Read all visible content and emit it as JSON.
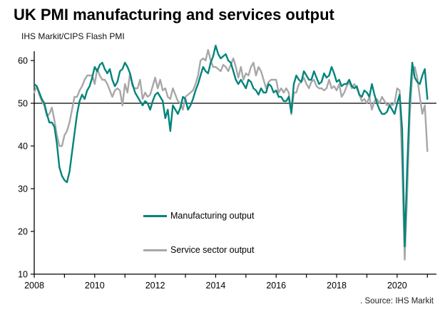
{
  "header": {
    "title": "UK PMI manufacturing and services output",
    "subtitle": "IHS Markit/CIPS Flash PMI"
  },
  "footer": {
    "source": ". Source: IHS Markit"
  },
  "colors": {
    "manufacturing": "#00847b",
    "services": "#a7a7a7",
    "axis": "#000000",
    "background": "#ffffff"
  },
  "chart_data": {
    "type": "line",
    "title": "UK PMI manufacturing and services output",
    "subtitle": "IHS Markit/CIPS Flash PMI",
    "source": ". Source: IHS Markit",
    "x_start_year": 2008,
    "x_step_months": 1,
    "x_range": [
      2008,
      2021.3
    ],
    "ylim": [
      10,
      60
    ],
    "y_ticks": [
      10,
      20,
      30,
      40,
      50,
      60
    ],
    "x_ticks": [
      2008,
      2009,
      2010,
      2011,
      2012,
      2013,
      2014,
      2015,
      2016,
      2017,
      2018,
      2019,
      2020,
      2021
    ],
    "x_tick_labels": [
      2008,
      2010,
      2012,
      2014,
      2016,
      2018,
      2020
    ],
    "reference_line": 50,
    "grid": false,
    "legend_position": "inside-bottom-center",
    "series": [
      {
        "name": "Manufacturing output",
        "color": "#00847b",
        "values": [
          54.5,
          54.0,
          52.5,
          51.0,
          50.0,
          47.5,
          45.5,
          45.5,
          44.5,
          40.5,
          35.0,
          33.0,
          32.0,
          31.5,
          34.0,
          38.5,
          43.0,
          47.5,
          50.5,
          52.0,
          51.0,
          53.0,
          54.0,
          56.0,
          58.5,
          57.5,
          59.0,
          59.5,
          58.0,
          57.0,
          58.0,
          55.5,
          54.0,
          55.0,
          57.5,
          58.0,
          59.5,
          58.5,
          57.0,
          54.5,
          52.5,
          51.5,
          50.5,
          49.5,
          50.5,
          50.0,
          48.5,
          50.5,
          52.0,
          52.5,
          51.5,
          50.5,
          46.5,
          48.5,
          43.5,
          49.5,
          48.5,
          47.5,
          49.0,
          51.5,
          51.0,
          48.5,
          49.5,
          51.0,
          53.0,
          54.5,
          56.5,
          58.5,
          57.5,
          57.0,
          59.5,
          61.0,
          63.5,
          61.5,
          60.5,
          61.0,
          61.5,
          60.0,
          59.5,
          57.5,
          55.5,
          54.5,
          55.5,
          54.5,
          53.5,
          55.5,
          55.0,
          53.5,
          53.0,
          52.0,
          53.5,
          52.5,
          52.5,
          54.5,
          54.0,
          52.5,
          53.0,
          51.5,
          51.5,
          50.5,
          50.5,
          51.5,
          47.8,
          54.5,
          56.5,
          55.5,
          55.0,
          57.5,
          56.5,
          55.5,
          55.5,
          57.5,
          56.0,
          54.5,
          55.0,
          57.0,
          56.0,
          56.5,
          58.5,
          57.0,
          55.0,
          55.5,
          54.0,
          54.5,
          54.5,
          55.5,
          54.0,
          53.5,
          54.0,
          52.0,
          51.5,
          53.0,
          52.5,
          51.5,
          54.5,
          52.0,
          50.0,
          48.5,
          47.5,
          47.5,
          48.0,
          49.5,
          48.5,
          47.5,
          50.0,
          52.0,
          44.0,
          16.5,
          35.0,
          50.5,
          59.5,
          56.0,
          55.0,
          54.5,
          56.5,
          58.0,
          51.0
        ]
      },
      {
        "name": "Service sector output",
        "color": "#a7a7a7",
        "values": [
          52.5,
          54.0,
          52.0,
          50.5,
          49.5,
          47.0,
          47.5,
          49.0,
          46.0,
          42.5,
          40.0,
          40.0,
          42.5,
          43.5,
          45.5,
          48.5,
          51.5,
          51.5,
          53.0,
          54.0,
          55.5,
          56.5,
          56.5,
          56.5,
          54.5,
          58.0,
          56.5,
          55.5,
          55.5,
          54.5,
          53.0,
          51.5,
          53.0,
          53.5,
          53.0,
          49.5,
          54.5,
          52.5,
          57.0,
          54.0,
          53.5,
          53.5,
          55.5,
          51.0,
          52.5,
          51.5,
          52.0,
          54.0,
          56.0,
          53.5,
          55.5,
          53.0,
          53.5,
          51.5,
          51.0,
          53.5,
          52.0,
          50.5,
          50.0,
          48.5,
          51.5,
          52.0,
          52.5,
          53.0,
          54.5,
          56.5,
          60.0,
          60.5,
          60.0,
          62.5,
          60.0,
          58.5,
          58.5,
          58.0,
          57.5,
          59.0,
          58.5,
          57.5,
          59.0,
          60.5,
          58.5,
          56.0,
          58.5,
          55.5,
          57.0,
          56.5,
          58.5,
          59.5,
          56.5,
          58.5,
          57.5,
          55.5,
          53.5,
          55.0,
          55.5,
          55.5,
          55.5,
          52.5,
          53.5,
          52.5,
          53.5,
          52.5,
          47.4,
          52.5,
          52.5,
          54.5,
          55.0,
          56.0,
          54.5,
          53.5,
          55.0,
          55.5,
          54.0,
          53.5,
          53.5,
          53.0,
          53.5,
          55.5,
          53.5,
          54.0,
          53.0,
          54.5,
          51.5,
          52.5,
          54.0,
          55.0,
          53.5,
          54.5,
          53.5,
          52.0,
          50.5,
          51.0,
          50.0,
          51.5,
          48.5,
          50.5,
          51.0,
          50.0,
          51.5,
          50.5,
          49.5,
          50.0,
          49.5,
          50.0,
          53.5,
          53.0,
          35.5,
          13.4,
          29.0,
          47.0,
          56.5,
          58.5,
          56.0,
          51.5,
          47.5,
          49.5,
          38.8
        ]
      }
    ]
  }
}
